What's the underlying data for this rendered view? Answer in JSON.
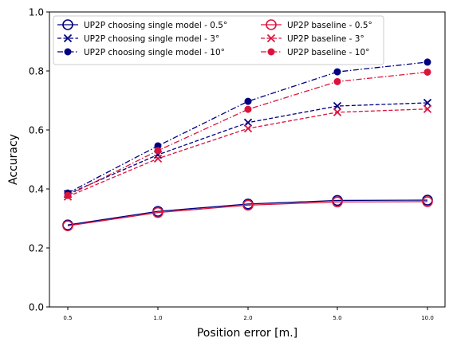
{
  "chart_data": {
    "type": "line",
    "xlabel": "Position error [m.]",
    "ylabel": "Accuracy",
    "categories": [
      "0.5",
      "1.0",
      "2.0",
      "5.0",
      "10.0"
    ],
    "ylim": [
      0.0,
      1.0
    ],
    "yticks": [
      "0.0",
      "0.2",
      "0.4",
      "0.6",
      "0.8",
      "1.0"
    ],
    "grid": false,
    "legend_position": "upper-left",
    "colors": {
      "navy": "#000080",
      "crimson": "#dc143c"
    },
    "series": [
      {
        "name": "UP2P choosing single model - 0.5°",
        "color": "#000080",
        "dash": "solid",
        "marker": "open-circle",
        "values": [
          0.278,
          0.324,
          0.349,
          0.361,
          0.362
        ]
      },
      {
        "name": "UP2P choosing single model - 3°",
        "color": "#000080",
        "dash": "dashed",
        "marker": "x",
        "values": [
          0.383,
          0.516,
          0.625,
          0.681,
          0.692
        ]
      },
      {
        "name": "UP2P choosing single model - 10°",
        "color": "#000080",
        "dash": "dashdot",
        "marker": "dot",
        "values": [
          0.386,
          0.546,
          0.697,
          0.797,
          0.83
        ]
      },
      {
        "name": "UP2P baseline - 0.5°",
        "color": "#dc143c",
        "dash": "solid",
        "marker": "open-circle",
        "values": [
          0.275,
          0.32,
          0.345,
          0.356,
          0.357
        ]
      },
      {
        "name": "UP2P baseline - 3°",
        "color": "#dc143c",
        "dash": "dashed",
        "marker": "x",
        "values": [
          0.374,
          0.503,
          0.605,
          0.66,
          0.671
        ]
      },
      {
        "name": "UP2P baseline - 10°",
        "color": "#dc143c",
        "dash": "dashdot",
        "marker": "dot",
        "values": [
          0.378,
          0.53,
          0.67,
          0.764,
          0.796
        ]
      }
    ]
  }
}
